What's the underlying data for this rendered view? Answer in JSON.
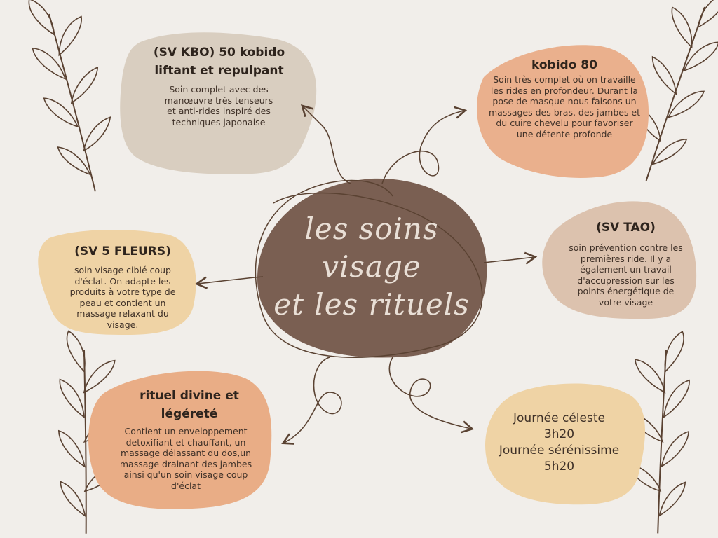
{
  "center": {
    "line1": "les soins",
    "line2": "visage",
    "line3": "et les rituels"
  },
  "nodes": {
    "kbo": {
      "title": "(SV KBO) 50 kobido liftant et repulpant",
      "desc": "Soin complet avec des manœuvre très tenseurs et anti-rides inspiré des techniques japonaise"
    },
    "kobido80": {
      "title": "kobido 80",
      "desc": "Soin très complet où on travaille les rides en profondeur. Durant la pose de masque nous faisons un massages des bras, des jambes et du cuire chevelu pour favoriser une détente profonde"
    },
    "tao": {
      "title": "(SV TAO)",
      "desc": "soin prévention contre les premières ride. Il y a également un travail d'accupression sur les points énergétique de votre visage"
    },
    "fleurs": {
      "title": "(SV 5 FLEURS)",
      "desc": "soin visage ciblé coup d'éclat. On adapte les produits à votre type de peau et contient un massage relaxant du visage."
    },
    "rituel": {
      "title": "rituel divine et légéreté",
      "desc": "Contient un enveloppement detoxifiant et chauffant, un massage délassant du dos,un massage drainant des jambes ainsi qu'un soin visage coup d'éclat"
    },
    "journee": {
      "line1": "Journée céleste",
      "line2": "3h20",
      "line3": "Journée sérénissime",
      "line4": "5h20"
    }
  },
  "colors": {
    "background": "#f1eeea",
    "center": "#7a5f52",
    "kbo": "#d9cec0",
    "kobido80": "#eab08d",
    "tao": "#dcc2ae",
    "fleurs": "#efd3a5",
    "rituel": "#e9ad86",
    "journee": "#efd3a5",
    "line": "#5a4232"
  }
}
